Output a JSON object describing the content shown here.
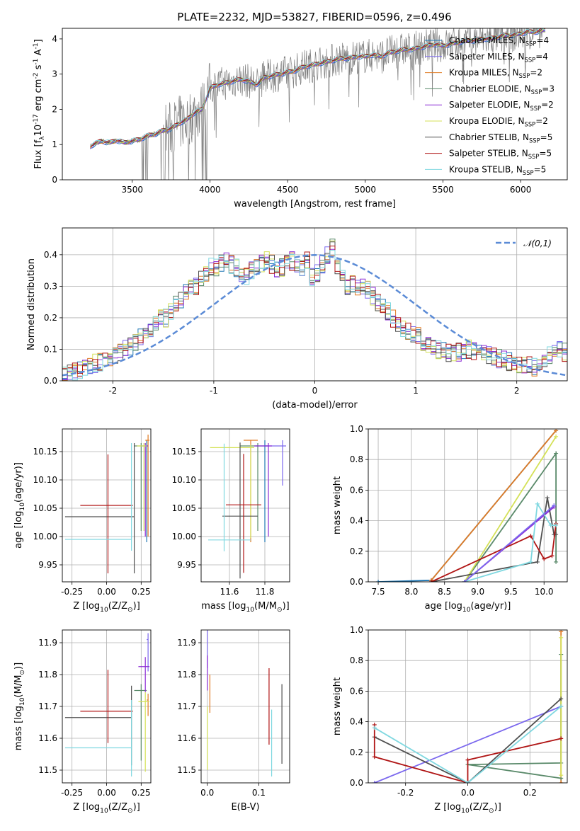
{
  "figure_title": "PLATE=2232, MJD=53827, FIBERID=0596, z=0.496",
  "series_styles": [
    {
      "name": "Chabrier MILES, N$_{SSP}$=4",
      "color": "#1f77b4"
    },
    {
      "name": "Salpeter MILES, N$_{SSP}$=4",
      "color": "#7b68ee"
    },
    {
      "name": "Kroupa MILES, N$_{SSP}$=2",
      "color": "#e07b24"
    },
    {
      "name": "Chabrier ELODIE, N$_{SSP}$=3",
      "color": "#5a8a6a"
    },
    {
      "name": "Salpeter ELODIE, N$_{SSP}$=2",
      "color": "#8c2bd6"
    },
    {
      "name": "Kroupa ELODIE, N$_{SSP}$=2",
      "color": "#d4e157"
    },
    {
      "name": "Chabrier STELIB, N$_{SSP}$=5",
      "color": "#505050"
    },
    {
      "name": "Salpeter STELIB, N$_{SSP}$=5",
      "color": "#b01515"
    },
    {
      "name": "Kroupa STELIB, N$_{SSP}$=5",
      "color": "#80d8e0"
    }
  ],
  "chart_data": [
    {
      "id": "spectrum",
      "type": "line",
      "title": "PLATE=2232, MJD=53827, FIBERID=0596, z=0.496",
      "xlabel": "wavelength [Angstrom, rest frame]",
      "ylabel": "Flux [$f_{\\lambda}$$10^{-17}$ erg cm$^{-2}$ s$^{-1}$ A$^{-1}$]",
      "xlim": [
        3050,
        6300
      ],
      "ylim": [
        0,
        4.3
      ],
      "xticks": [
        3500,
        4000,
        4500,
        5000,
        5500,
        6000
      ],
      "yticks": [
        0,
        1,
        2,
        3,
        4
      ],
      "grid": false,
      "legend_position": "upper right",
      "legend": [
        "Chabrier MILES, N$_{SSP}$=4",
        "Salpeter MILES, N$_{SSP}$=4",
        "Kroupa MILES, N$_{SSP}$=2",
        "Chabrier ELODIE, N$_{SSP}$=3",
        "Salpeter ELODIE, N$_{SSP}$=2",
        "Kroupa ELODIE, N$_{SSP}$=2",
        "Chabrier STELIB, N$_{SSP}$=5",
        "Salpeter STELIB, N$_{SSP}$=5",
        "Kroupa STELIB, N$_{SSP}$=5"
      ],
      "model_continuum": {
        "x": [
          3230,
          3250,
          3300,
          3350,
          3400,
          3450,
          3500,
          3550,
          3600,
          3650,
          3700,
          3750,
          3800,
          3850,
          3900,
          3950,
          4000,
          4050,
          4100,
          4150,
          4200,
          4250,
          4300,
          4350,
          4400,
          4450,
          4500,
          4550,
          4600,
          4650,
          4700,
          4750,
          4800,
          4850,
          4900,
          4950,
          5000,
          5050,
          5100,
          5150,
          5200,
          5250,
          5300,
          5350,
          5400,
          5450,
          5500,
          5550,
          5600,
          5650,
          5700,
          5750,
          5800,
          5850,
          5900,
          5950,
          6000,
          6050,
          6100,
          6150
        ],
        "y": [
          0.95,
          1.0,
          1.1,
          1.05,
          1.12,
          1.05,
          1.1,
          1.15,
          1.25,
          1.3,
          1.4,
          1.45,
          1.6,
          1.7,
          1.9,
          2.0,
          2.6,
          2.7,
          2.75,
          2.8,
          2.85,
          2.8,
          2.7,
          2.9,
          2.95,
          3.0,
          3.05,
          3.1,
          3.2,
          3.25,
          3.3,
          3.35,
          3.4,
          3.45,
          3.45,
          3.5,
          3.5,
          3.55,
          3.5,
          3.6,
          3.65,
          3.7,
          3.7,
          3.75,
          3.8,
          3.85,
          3.8,
          3.85,
          3.9,
          3.95,
          3.95,
          4.0,
          4.0,
          4.05,
          4.1,
          4.1,
          4.15,
          4.2,
          4.2,
          4.25
        ]
      }
    },
    {
      "id": "residual-histogram",
      "type": "histogram",
      "xlabel": "(data-model)/error",
      "ylabel": "Normed distribution",
      "xlim": [
        -2.5,
        2.5
      ],
      "ylim": [
        0,
        0.485
      ],
      "xticks": [
        -2,
        -1,
        0,
        1,
        2
      ],
      "yticks": [
        0.0,
        0.1,
        0.2,
        0.3,
        0.4
      ],
      "grid": true,
      "legend_position": "upper right",
      "legend": [
        "$\\mathcal{N}(0,1)$"
      ],
      "reference_curve": {
        "name": "$\\mathcal{N}(0,1)$",
        "mean": 0,
        "sigma": 1,
        "color": "#5b8bd6"
      },
      "bin_width": 0.1,
      "bin_start": -2.5,
      "typical_heights": [
        0.02,
        0.025,
        0.03,
        0.035,
        0.04,
        0.05,
        0.055,
        0.06,
        0.07,
        0.075,
        0.085,
        0.09,
        0.1,
        0.11,
        0.125,
        0.14,
        0.15,
        0.165,
        0.18,
        0.2,
        0.2,
        0.22,
        0.24,
        0.26,
        0.28,
        0.3,
        0.3,
        0.32,
        0.34,
        0.36,
        0.36,
        0.37,
        0.38,
        0.37,
        0.36,
        0.34,
        0.33,
        0.35,
        0.36,
        0.37,
        0.38,
        0.37,
        0.35,
        0.36,
        0.37,
        0.38,
        0.37,
        0.36,
        0.38,
        0.33,
        0.34,
        0.37,
        0.4,
        0.42,
        0.36,
        0.33,
        0.3,
        0.31,
        0.3,
        0.3,
        0.29,
        0.27,
        0.25,
        0.24,
        0.22,
        0.2,
        0.18,
        0.17,
        0.16,
        0.15,
        0.14,
        0.12,
        0.11,
        0.1,
        0.1,
        0.095,
        0.09,
        0.085,
        0.09,
        0.095,
        0.1,
        0.095,
        0.09,
        0.085,
        0.08,
        0.075,
        0.07,
        0.065,
        0.06,
        0.06,
        0.055,
        0.05,
        0.05,
        0.045,
        0.06,
        0.07,
        0.08,
        0.09,
        0.1,
        0.09
      ]
    },
    {
      "id": "age-vs-Z",
      "type": "scatter",
      "xlabel": "Z [log$_{10}$($Z/Z_\\odot$)]",
      "ylabel": "age  [log$_{10}$($age/yr$)]",
      "xlim": [
        -0.32,
        0.32
      ],
      "ylim": [
        9.92,
        10.19
      ],
      "xticks": [
        -0.25,
        0.0,
        0.25
      ],
      "yticks": [
        9.95,
        10.0,
        10.05,
        10.1,
        10.15
      ],
      "grid": true,
      "points": [
        {
          "series": "Chabrier MILES",
          "x": 0.29,
          "y": 10.16,
          "xerr": [
            0.01,
            0.01
          ],
          "yerr": [
            0.17,
            0.01
          ]
        },
        {
          "series": "Kroupa MILES",
          "x": 0.3,
          "y": 10.17,
          "xerr": [
            0.02,
            0.01
          ],
          "yerr": [
            0.17,
            0.01
          ]
        },
        {
          "series": "Chabrier ELODIE",
          "x": 0.25,
          "y": 10.16,
          "xerr": [
            0.05,
            0.02
          ],
          "yerr": [
            0.15,
            0.005
          ]
        },
        {
          "series": "Salpeter ELODIE",
          "x": 0.28,
          "y": 10.16,
          "xerr": [
            0.02,
            0.02
          ],
          "yerr": [
            0.16,
            0.005
          ]
        },
        {
          "series": "Kroupa ELODIE",
          "x": 0.27,
          "y": 10.16,
          "xerr": [
            0.05,
            0.02
          ],
          "yerr": [
            0.15,
            0.005
          ]
        },
        {
          "series": "Chabrier STELIB",
          "x": 0.2,
          "y": 10.035,
          "xerr": [
            0.5,
            0.0
          ],
          "yerr": [
            0.1,
            0.13
          ]
        },
        {
          "series": "Salpeter STELIB",
          "x": 0.01,
          "y": 10.055,
          "xerr": [
            0.2,
            0.18
          ],
          "yerr": [
            0.12,
            0.09
          ]
        },
        {
          "series": "Kroupa STELIB",
          "x": 0.18,
          "y": 9.995,
          "xerr": [
            0.48,
            0.0
          ],
          "yerr": [
            0.02,
            0.17
          ]
        }
      ]
    },
    {
      "id": "age-vs-mass",
      "type": "scatter",
      "xlabel": "mass [log$_{10}$($M/M_\\odot$)]",
      "ylabel": "",
      "xlim": [
        11.44,
        11.94
      ],
      "ylim": [
        9.92,
        10.19
      ],
      "xticks": [
        11.6,
        11.8
      ],
      "yticks": [
        9.95,
        10.0,
        10.05,
        10.1,
        10.15
      ],
      "grid": true,
      "points": [
        {
          "series": "Chabrier MILES",
          "x": 11.8,
          "y": 10.16,
          "xerr": [
            0.05,
            0.02
          ],
          "yerr": [
            0.17,
            0.01
          ]
        },
        {
          "series": "Salpeter MILES",
          "x": 11.9,
          "y": 10.16,
          "xerr": [
            0.1,
            0.02
          ],
          "yerr": [
            0.07,
            0.01
          ]
        },
        {
          "series": "Kroupa MILES",
          "x": 11.72,
          "y": 10.17,
          "xerr": [
            0.04,
            0.04
          ],
          "yerr": [
            0.18,
            0.0
          ]
        },
        {
          "series": "Chabrier ELODIE",
          "x": 11.76,
          "y": 10.16,
          "xerr": [
            0.1,
            0.0
          ],
          "yerr": [
            0.15,
            0.005
          ]
        },
        {
          "series": "Salpeter ELODIE",
          "x": 11.82,
          "y": 10.16,
          "xerr": [
            0.08,
            0.02
          ],
          "yerr": [
            0.16,
            0.005
          ]
        },
        {
          "series": "Kroupa ELODIE",
          "x": 11.72,
          "y": 10.157,
          "xerr": [
            0.23,
            0.02
          ],
          "yerr": [
            0.16,
            0.005
          ]
        },
        {
          "series": "Chabrier STELIB",
          "x": 11.66,
          "y": 10.036,
          "xerr": [
            0.1,
            0.1
          ],
          "yerr": [
            0.11,
            0.13
          ]
        },
        {
          "series": "Salpeter STELIB",
          "x": 11.68,
          "y": 10.056,
          "xerr": [
            0.1,
            0.1
          ],
          "yerr": [
            0.12,
            0.09
          ]
        },
        {
          "series": "Kroupa STELIB",
          "x": 11.57,
          "y": 9.994,
          "xerr": [
            0.09,
            0.15
          ],
          "yerr": [
            0.02,
            0.17
          ]
        }
      ]
    },
    {
      "id": "massweight-vs-age",
      "type": "line",
      "xlabel": "age  [log$_{10}$($age/yr$)]",
      "ylabel": "mass weight",
      "xlim": [
        7.35,
        10.35
      ],
      "ylim": [
        0.0,
        1.0
      ],
      "xticks": [
        7.5,
        8.0,
        8.5,
        9.0,
        9.5,
        10.0
      ],
      "yticks": [
        0.0,
        0.2,
        0.4,
        0.6,
        0.8,
        1.0
      ],
      "grid": true,
      "series": [
        {
          "name": "Chabrier MILES",
          "x": [
            7.5,
            8.3,
            10.18
          ],
          "y": [
            0.0,
            0.01,
            0.99
          ]
        },
        {
          "name": "Kroupa MILES",
          "x": [
            8.3,
            10.18
          ],
          "y": [
            0.01,
            0.99
          ]
        },
        {
          "name": "Chabrier ELODIE",
          "x": [
            8.8,
            10.18,
            10.18
          ],
          "y": [
            0.0,
            0.84,
            0.13
          ]
        },
        {
          "name": "Salpeter ELODIE",
          "x": [
            8.8,
            10.15
          ],
          "y": [
            0.0,
            0.49
          ]
        },
        {
          "name": "Kroupa ELODIE",
          "x": [
            8.8,
            10.18
          ],
          "y": [
            0.0,
            0.95
          ]
        },
        {
          "name": "Chabrier STELIB",
          "x": [
            8.3,
            9.9,
            10.05,
            10.15,
            10.18
          ],
          "y": [
            0.0,
            0.13,
            0.55,
            0.31,
            0.31
          ]
        },
        {
          "name": "Salpeter STELIB",
          "x": [
            8.3,
            9.8,
            10.0,
            10.12,
            10.18
          ],
          "y": [
            0.0,
            0.3,
            0.15,
            0.17,
            0.38
          ]
        },
        {
          "name": "Kroupa STELIB",
          "x": [
            8.8,
            9.8,
            9.9,
            10.1,
            10.18
          ],
          "y": [
            0.0,
            0.13,
            0.51,
            0.37,
            0.37
          ]
        },
        {
          "name": "Salpeter MILES",
          "x": [
            8.8,
            10.15
          ],
          "y": [
            0.0,
            0.5
          ]
        }
      ]
    },
    {
      "id": "mass-vs-Z",
      "type": "scatter",
      "xlabel": "Z [log$_{10}$($Z/Z_\\odot$)]",
      "ylabel": "mass [log$_{10}$($M/M_\\odot$)]",
      "xlim": [
        -0.32,
        0.32
      ],
      "ylim": [
        11.46,
        11.94
      ],
      "xticks": [
        -0.25,
        0.0,
        0.25
      ],
      "yticks": [
        11.5,
        11.6,
        11.7,
        11.8,
        11.9
      ],
      "grid": true,
      "points": [
        {
          "series": "Salpeter MILES",
          "x": 0.3,
          "y": 11.91,
          "xerr": [
            0.01,
            0.0
          ],
          "yerr": [
            0.1,
            0.02
          ]
        },
        {
          "series": "Kroupa MILES",
          "x": 0.3,
          "y": 11.72,
          "xerr": [
            0.01,
            0.0
          ],
          "yerr": [
            0.05,
            0.02
          ]
        },
        {
          "series": "Chabrier ELODIE",
          "x": 0.25,
          "y": 11.75,
          "xerr": [
            0.05,
            0.04
          ],
          "yerr": [
            0.22,
            0.02
          ]
        },
        {
          "series": "Salpeter ELODIE",
          "x": 0.28,
          "y": 11.825,
          "xerr": [
            0.05,
            0.03
          ],
          "yerr": [
            0.08,
            0.03
          ]
        },
        {
          "series": "Kroupa ELODIE",
          "x": 0.28,
          "y": 11.715,
          "xerr": [
            0.05,
            0.03
          ],
          "yerr": [
            0.22,
            0.03
          ]
        },
        {
          "series": "Chabrier STELIB",
          "x": 0.18,
          "y": 11.665,
          "xerr": [
            0.48,
            0.0
          ],
          "yerr": [
            0.15,
            0.1
          ]
        },
        {
          "series": "Salpeter STELIB",
          "x": 0.01,
          "y": 11.685,
          "xerr": [
            0.2,
            0.18
          ],
          "yerr": [
            0.1,
            0.13
          ]
        },
        {
          "series": "Kroupa STELIB",
          "x": 0.18,
          "y": 11.57,
          "xerr": [
            0.48,
            0.0
          ],
          "yerr": [
            0.09,
            0.15
          ]
        }
      ]
    },
    {
      "id": "mass-vs-EBV",
      "type": "scatter",
      "xlabel": "E(B-V)",
      "ylabel": "",
      "xlim": [
        -0.012,
        0.16
      ],
      "ylim": [
        11.46,
        11.94
      ],
      "xticks": [
        0.0,
        0.1
      ],
      "yticks": [
        11.5,
        11.6,
        11.7,
        11.8,
        11.9
      ],
      "grid": true,
      "points": [
        {
          "series": "Salpeter MILES",
          "x": 0.0,
          "y": 11.91,
          "yerr": [
            0.09,
            0.03
          ]
        },
        {
          "series": "Kroupa MILES",
          "x": 0.005,
          "y": 11.74,
          "yerr": [
            0.06,
            0.06
          ]
        },
        {
          "series": "Salpeter ELODIE",
          "x": 0.0,
          "y": 11.83,
          "yerr": [
            0.08,
            0.03
          ]
        },
        {
          "series": "Kroupa ELODIE",
          "x": 0.0,
          "y": 11.6,
          "yerr": [
            0.1,
            0.1
          ]
        },
        {
          "series": "Chabrier STELIB",
          "x": 0.145,
          "y": 11.64,
          "yerr": [
            0.12,
            0.13
          ]
        },
        {
          "series": "Salpeter STELIB",
          "x": 0.12,
          "y": 11.7,
          "yerr": [
            0.12,
            0.12
          ]
        },
        {
          "series": "Kroupa STELIB",
          "x": 0.125,
          "y": 11.57,
          "yerr": [
            0.09,
            0.12
          ]
        }
      ]
    },
    {
      "id": "massweight-vs-Z",
      "type": "line",
      "xlabel": "Z [log$_{10}$($Z/Z_\\odot$)]",
      "ylabel": "mass weight",
      "xlim": [
        -0.32,
        0.32
      ],
      "ylim": [
        0.0,
        1.0
      ],
      "xticks": [
        -0.2,
        0.0,
        0.2
      ],
      "yticks": [
        0.0,
        0.2,
        0.4,
        0.6,
        0.8,
        1.0
      ],
      "grid": true,
      "series": [
        {
          "name": "Salpeter MILES",
          "x": [
            -0.3,
            0.3
          ],
          "y": [
            0.0,
            0.5
          ]
        },
        {
          "name": "Kroupa MILES",
          "x": [
            0.3,
            0.3
          ],
          "y": [
            0.0,
            0.99
          ]
        },
        {
          "name": "Chabrier ELODIE",
          "x": [
            0.3,
            0.3,
            0.0,
            0.3
          ],
          "y": [
            0.84,
            0.13,
            0.12,
            0.03
          ]
        },
        {
          "name": "Kroupa ELODIE",
          "x": [
            0.3,
            0.3
          ],
          "y": [
            0.05,
            0.95
          ]
        },
        {
          "name": "Chabrier STELIB",
          "x": [
            -0.3,
            0.0,
            0.3
          ],
          "y": [
            0.3,
            0.0,
            0.55
          ]
        },
        {
          "name": "Salpeter STELIB",
          "x": [
            0.3,
            0.0,
            0.0,
            -0.3,
            -0.3
          ],
          "y": [
            0.29,
            0.15,
            0.0,
            0.17,
            0.38
          ]
        },
        {
          "name": "Kroupa STELIB",
          "x": [
            0.3,
            0.0,
            -0.3
          ],
          "y": [
            0.5,
            0.0,
            0.36
          ]
        }
      ]
    }
  ]
}
